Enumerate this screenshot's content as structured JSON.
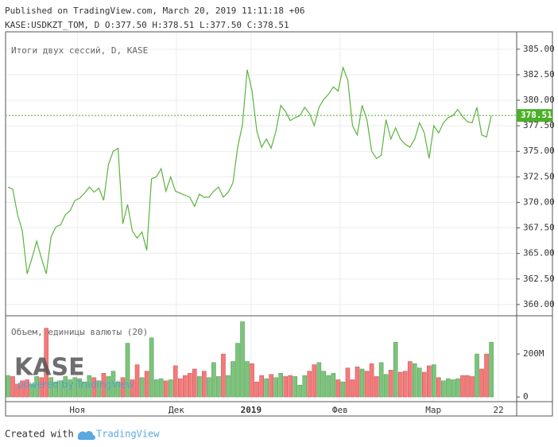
{
  "header": {
    "line1": "Published on TradingView.com, March 20, 2019 11:11:18 +06",
    "line2": "KASE:USDKZT_TOM, D O:377.50 H:378.51 L:377.50 C:378.51"
  },
  "watermark": {
    "logo": "KASE",
    "powered": "powered by TradingView"
  },
  "footer": {
    "created": "Created with",
    "brand": "TradingView"
  },
  "chart_data": [
    {
      "type": "line",
      "title": "Итоги двух сессий, D, KASE",
      "xlim": [
        -0.5,
        106.3
      ],
      "xticks": [
        {
          "value": 14.5,
          "label": "Ноя"
        },
        {
          "value": 35.2,
          "label": "Дек"
        },
        {
          "value": 50.8,
          "label": "2019"
        },
        {
          "value": 69.4,
          "label": "Фев"
        },
        {
          "value": 88.9,
          "label": "Мар"
        },
        {
          "value": 102.5,
          "label": "22"
        }
      ],
      "ylim": [
        358.9,
        386.7
      ],
      "yticks": [
        {
          "value": 360,
          "label": "360.00"
        },
        {
          "value": 362.5,
          "label": "362.50"
        },
        {
          "value": 365,
          "label": "365.00"
        },
        {
          "value": 367.5,
          "label": "367.50"
        },
        {
          "value": 370,
          "label": "370.00"
        },
        {
          "value": 372.5,
          "label": "372.50"
        },
        {
          "value": 375,
          "label": "375.00"
        },
        {
          "value": 377.5,
          "label": "377.50"
        },
        {
          "value": 380,
          "label": "380.00"
        },
        {
          "value": 382.5,
          "label": "382.50"
        },
        {
          "value": 385,
          "label": "385.00"
        }
      ],
      "grid": true,
      "color": "#5bb33e",
      "last_label_color": "#4caf2a",
      "values": [
        371.5,
        371.3,
        368.8,
        367.2,
        363.0,
        364.5,
        366.2,
        364.5,
        363.0,
        366.6,
        367.6,
        367.8,
        368.8,
        369.2,
        370.2,
        370.4,
        370.9,
        371.5,
        371.0,
        371.4,
        370.2,
        373.7,
        375.0,
        375.3,
        367.9,
        369.8,
        367.2,
        366.5,
        367.1,
        365.3,
        372.3,
        372.5,
        373.3,
        371.1,
        372.5,
        371.1,
        370.9,
        370.7,
        370.5,
        369.6,
        370.8,
        370.5,
        370.5,
        371.1,
        371.5,
        370.5,
        371.0,
        371.9,
        375.4,
        377.6,
        383.0,
        380.9,
        377.0,
        375.4,
        376.2,
        375.3,
        377.0,
        379.5,
        378.9,
        378.0,
        378.3,
        378.5,
        379.3,
        378.7,
        377.5,
        379.3,
        380.1,
        380.6,
        381.3,
        380.9,
        383.2,
        382.0,
        377.5,
        376.6,
        379.5,
        378.1,
        375.0,
        374.3,
        374.6,
        378.1,
        376.2,
        377.3,
        376.2,
        375.7,
        375.4,
        376.2,
        377.8,
        376.8,
        374.3,
        377.5,
        376.8,
        377.8,
        378.3,
        378.5,
        379.1,
        378.4,
        377.9,
        377.8,
        379.3,
        376.6,
        376.4,
        378.51
      ]
    },
    {
      "type": "bar",
      "title": "Объем, единицы валюты (20)",
      "ylim": [
        -22,
        378
      ],
      "yticks": [
        0,
        {
          "value": 200,
          "label": "200M"
        }
      ],
      "up_color": "#7cc47c",
      "down_color": "#f47a7a",
      "values": [
        100,
        95,
        60,
        75,
        80,
        60,
        95,
        90,
        320,
        90,
        70,
        75,
        95,
        80,
        90,
        85,
        70,
        100,
        90,
        75,
        110,
        95,
        120,
        70,
        90,
        250,
        80,
        150,
        90,
        120,
        275,
        80,
        85,
        75,
        80,
        145,
        85,
        100,
        110,
        130,
        95,
        120,
        90,
        160,
        95,
        200,
        100,
        165,
        250,
        350,
        165,
        155,
        70,
        100,
        85,
        105,
        90,
        110,
        95,
        100,
        95,
        55,
        100,
        120,
        150,
        160,
        120,
        100,
        110,
        80,
        70,
        135,
        80,
        140,
        130,
        120,
        155,
        95,
        160,
        105,
        125,
        255,
        115,
        120,
        165,
        155,
        135,
        115,
        145,
        150,
        90,
        75,
        85,
        80,
        85,
        100,
        100,
        95,
        200,
        130,
        200,
        255
      ]
    }
  ]
}
